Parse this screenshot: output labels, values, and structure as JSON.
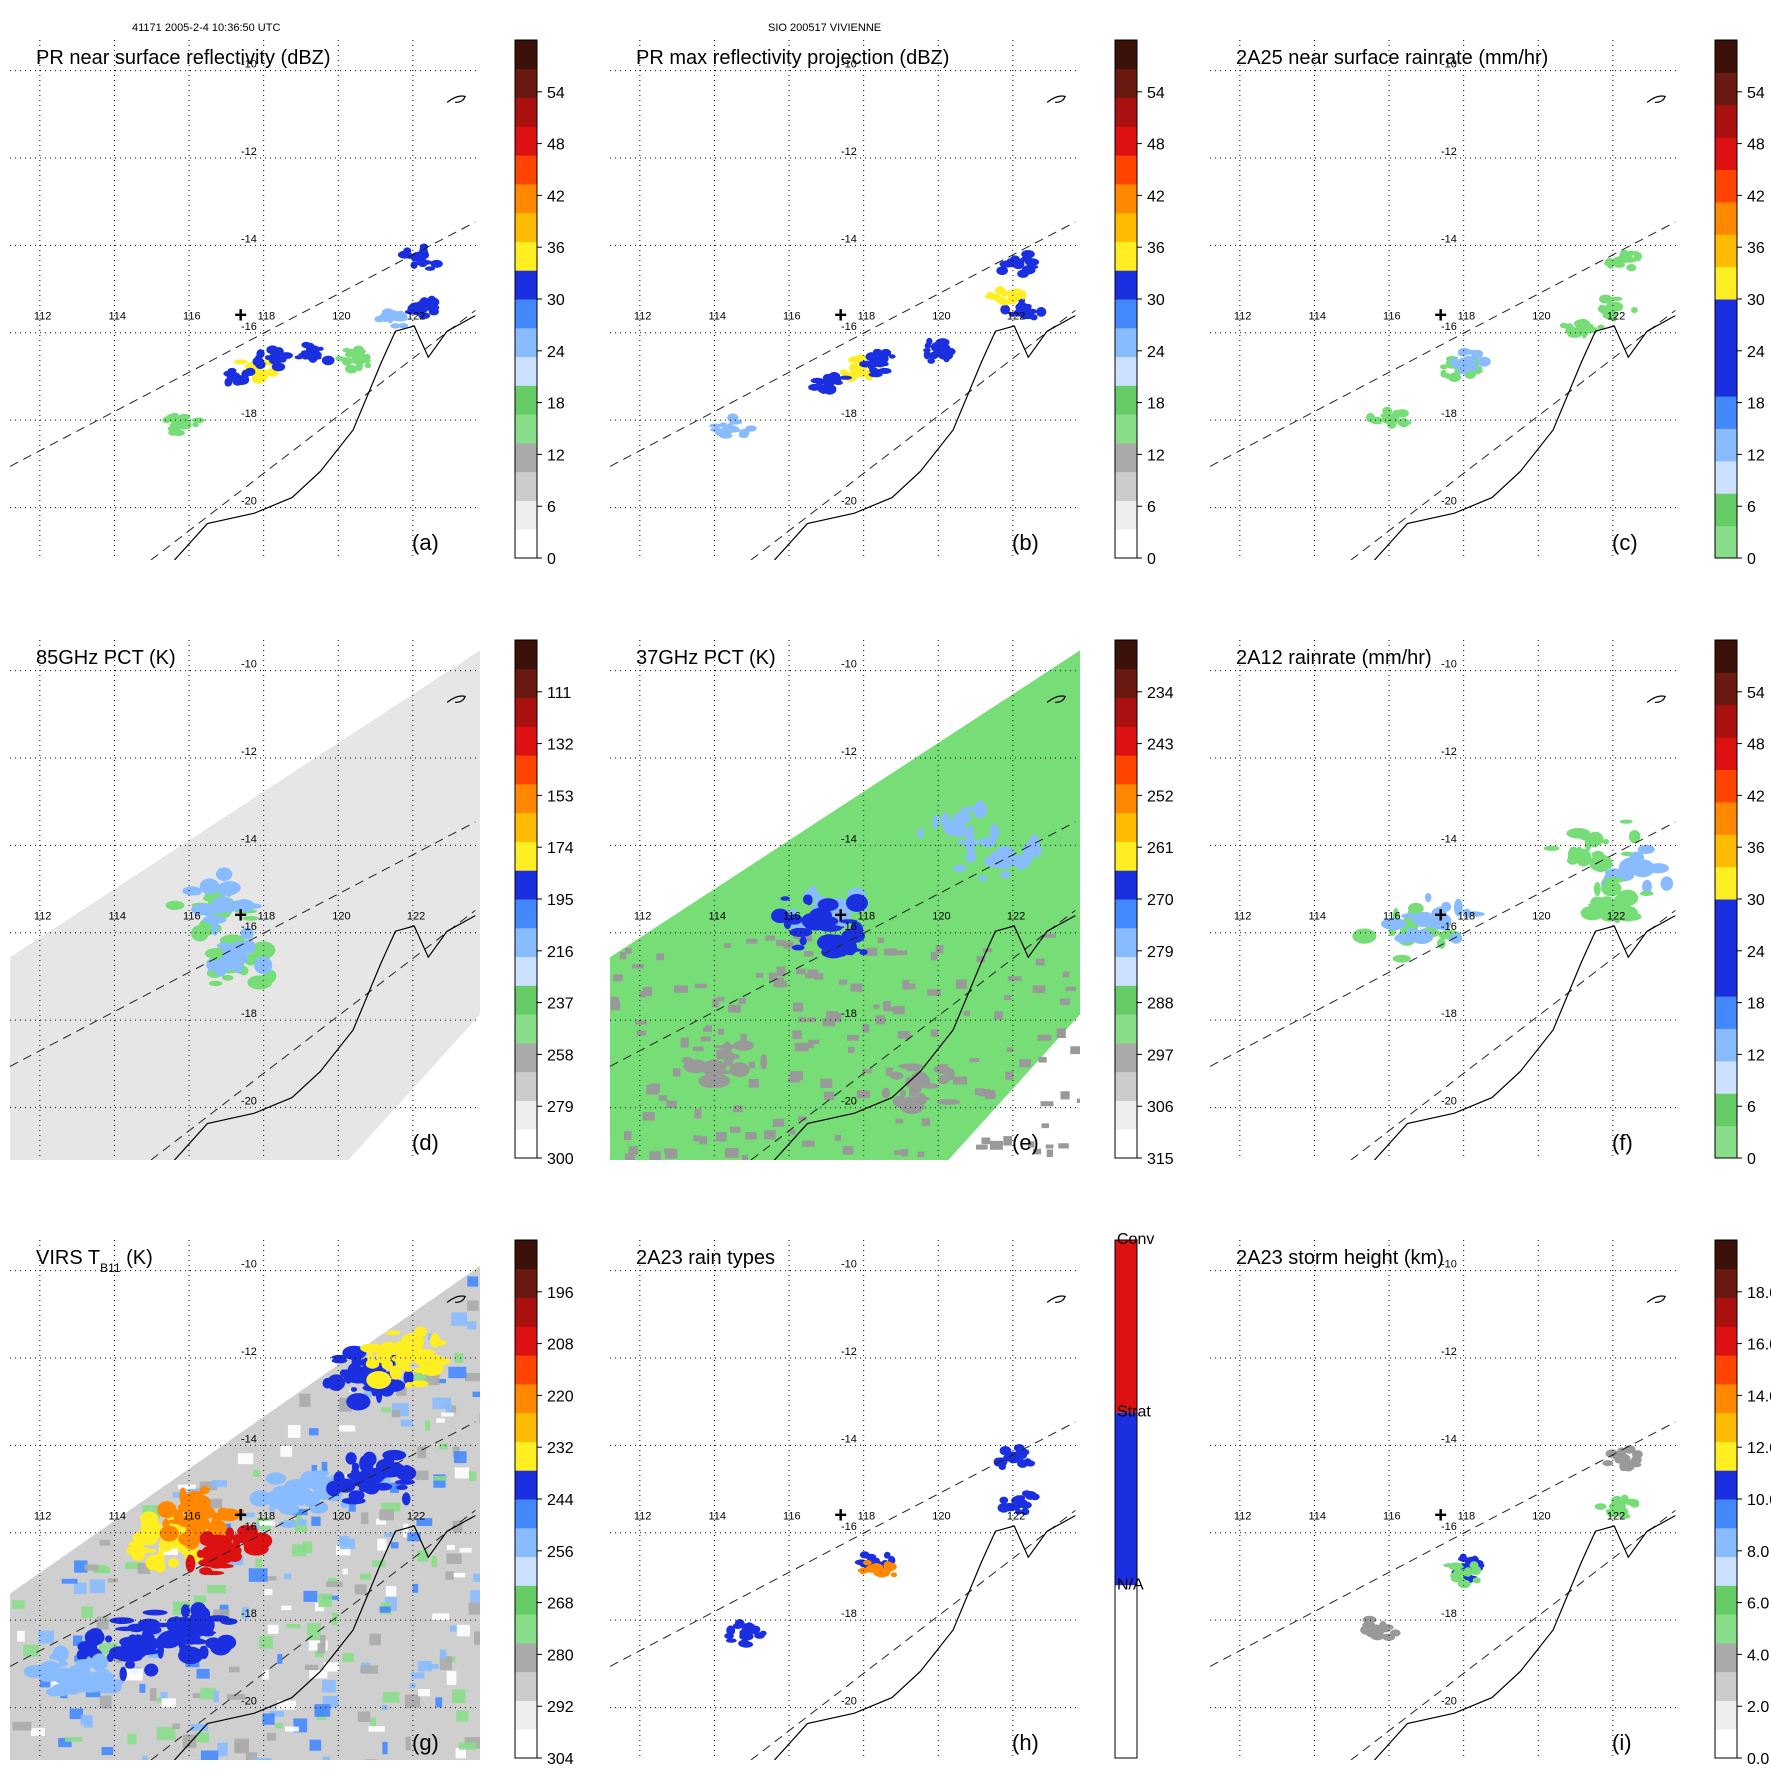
{
  "header": {
    "left": "41171 2005-2-4 10:36:50 UTC",
    "center": "SIO 200517 VIVIENNE"
  },
  "colors": {
    "green": "#77dd77",
    "gray_dark": "#999999",
    "light_blue": "#88bbff",
    "blue": "#1a2fe0",
    "yellow": "#ffee22",
    "orange": "#ff8800",
    "red": "#dd1111",
    "dark_red": "#6a1a10"
  },
  "axes": {
    "lon_ticks": [
      "112",
      "114",
      "116",
      "118",
      "120",
      "122"
    ],
    "lat_ticks": [
      "-10",
      "-12",
      "-14",
      "-16",
      "-18",
      "-20"
    ]
  },
  "chart_data": [
    {
      "type": "heatmap",
      "id": "a",
      "title": "PR near surface reflectivity (dBZ)",
      "panel_label": "(a)",
      "colorbar": {
        "type": "numeric",
        "ticks": [
          "0",
          "6",
          "12",
          "18",
          "24",
          "30",
          "36",
          "42",
          "48",
          "54"
        ],
        "colors": [
          "#ffffff",
          "#eeeeee",
          "#cccccc",
          "#aaaaaa",
          "#88dd88",
          "#66cc66",
          "#cce0ff",
          "#88bbff",
          "#4488ff",
          "#1a2fe0",
          "#ffee22",
          "#ffbb00",
          "#ff8800",
          "#ff4400",
          "#dd1111",
          "#aa1111",
          "#6a1a10",
          "#3a1008"
        ]
      },
      "swath": "pr",
      "blobs": [
        {
          "lon": 117.8,
          "lat": -16.8,
          "level": "yellow"
        },
        {
          "lon": 117.2,
          "lat": -17.0,
          "level": "blue"
        },
        {
          "lon": 118.3,
          "lat": -16.6,
          "level": "blue"
        },
        {
          "lon": 119.3,
          "lat": -16.5,
          "level": "blue"
        },
        {
          "lon": 121.5,
          "lat": -15.6,
          "level": "light_blue"
        },
        {
          "lon": 122.3,
          "lat": -15.4,
          "level": "blue"
        },
        {
          "lon": 122.2,
          "lat": -14.3,
          "level": "blue"
        },
        {
          "lon": 115.8,
          "lat": -18.1,
          "level": "green"
        },
        {
          "lon": 120.5,
          "lat": -16.6,
          "level": "green"
        }
      ]
    },
    {
      "type": "heatmap",
      "id": "b",
      "title": "PR max reflectivity projection (dBZ)",
      "panel_label": "(b)",
      "colorbar": {
        "type": "numeric",
        "ticks": [
          "0",
          "6",
          "12",
          "18",
          "24",
          "30",
          "36",
          "42",
          "48",
          "54"
        ],
        "colors": [
          "#ffffff",
          "#eeeeee",
          "#cccccc",
          "#aaaaaa",
          "#88dd88",
          "#66cc66",
          "#cce0ff",
          "#88bbff",
          "#4488ff",
          "#1a2fe0",
          "#ffee22",
          "#ffbb00",
          "#ff8800",
          "#ff4400",
          "#dd1111",
          "#aa1111",
          "#6a1a10",
          "#3a1008"
        ]
      },
      "swath": "pr",
      "blobs": [
        {
          "lon": 117.8,
          "lat": -16.8,
          "level": "yellow"
        },
        {
          "lon": 117.1,
          "lat": -17.1,
          "level": "blue"
        },
        {
          "lon": 118.4,
          "lat": -16.7,
          "level": "blue"
        },
        {
          "lon": 114.5,
          "lat": -18.2,
          "level": "light_blue"
        },
        {
          "lon": 122.1,
          "lat": -14.4,
          "level": "blue"
        },
        {
          "lon": 122.3,
          "lat": -15.5,
          "level": "blue"
        },
        {
          "lon": 121.8,
          "lat": -15.2,
          "level": "yellow"
        },
        {
          "lon": 120.0,
          "lat": -16.4,
          "level": "blue"
        }
      ]
    },
    {
      "type": "heatmap",
      "id": "c",
      "title": "2A25 near surface rainrate (mm/hr)",
      "panel_label": "(c)",
      "colorbar": {
        "type": "numeric",
        "ticks": [
          "0",
          "6",
          "12",
          "18",
          "24",
          "30",
          "36",
          "42",
          "48",
          "54"
        ],
        "colors": [
          "#88dd88",
          "#66cc66",
          "#cce0ff",
          "#88bbff",
          "#4488ff",
          "#1a2fe0",
          "#1a2fe0",
          "#1a2fe0",
          "#ffee22",
          "#ffbb00",
          "#ff8800",
          "#ff4400",
          "#dd1111",
          "#aa1111",
          "#6a1a10",
          "#3a1008"
        ]
      },
      "swath": "pr",
      "blobs": [
        {
          "lon": 117.9,
          "lat": -16.8,
          "level": "green"
        },
        {
          "lon": 118.1,
          "lat": -16.7,
          "level": "light_blue"
        },
        {
          "lon": 122.1,
          "lat": -15.4,
          "level": "green"
        },
        {
          "lon": 122.3,
          "lat": -14.3,
          "level": "green"
        },
        {
          "lon": 121.2,
          "lat": -15.8,
          "level": "green"
        },
        {
          "lon": 116.0,
          "lat": -18.0,
          "level": "green"
        }
      ]
    },
    {
      "type": "heatmap",
      "id": "d",
      "title": "85GHz PCT (K)",
      "panel_label": "(d)",
      "colorbar": {
        "type": "numeric",
        "ticks": [
          "300",
          "279",
          "258",
          "237",
          "216",
          "195",
          "174",
          "153",
          "132",
          "111"
        ],
        "colors": [
          "#ffffff",
          "#eeeeee",
          "#cccccc",
          "#aaaaaa",
          "#88dd88",
          "#66cc66",
          "#cce0ff",
          "#88bbff",
          "#4488ff",
          "#1a2fe0",
          "#ffee22",
          "#ffbb00",
          "#ff8800",
          "#ff4400",
          "#dd1111",
          "#aa1111",
          "#6a1a10",
          "#3a1008"
        ]
      },
      "swath": "tmi",
      "blobs": [
        {
          "lon": 116.6,
          "lat": -15.4,
          "level": "green"
        },
        {
          "lon": 117.2,
          "lat": -16.7,
          "level": "green"
        },
        {
          "lon": 117.4,
          "lat": -16.6,
          "level": "light_blue"
        },
        {
          "lon": 116.9,
          "lat": -15.3,
          "level": "light_blue"
        }
      ]
    },
    {
      "type": "heatmap",
      "id": "e",
      "title": "37GHz PCT (K)",
      "panel_label": "(e)",
      "colorbar": {
        "type": "numeric",
        "ticks": [
          "315",
          "306",
          "297",
          "288",
          "279",
          "270",
          "261",
          "252",
          "243",
          "234"
        ],
        "colors": [
          "#ffffff",
          "#eeeeee",
          "#cccccc",
          "#aaaaaa",
          "#88dd88",
          "#66cc66",
          "#cce0ff",
          "#88bbff",
          "#4488ff",
          "#1a2fe0",
          "#ffee22",
          "#ffbb00",
          "#ff8800",
          "#ff4400",
          "#dd1111",
          "#aa1111",
          "#6a1a10",
          "#3a1008"
        ]
      },
      "swath": "tmi",
      "background": "green",
      "blobs": [
        {
          "lon": 117.0,
          "lat": -15.5,
          "level": "light_blue"
        },
        {
          "lon": 117.4,
          "lat": -16.2,
          "level": "blue"
        },
        {
          "lon": 116.8,
          "lat": -15.6,
          "level": "blue"
        },
        {
          "lon": 120.6,
          "lat": -13.7,
          "level": "light_blue"
        },
        {
          "lon": 121.6,
          "lat": -14.3,
          "level": "light_blue"
        },
        {
          "lon": 119.5,
          "lat": -19.6,
          "level": "gray_dark"
        },
        {
          "lon": 114.2,
          "lat": -19.1,
          "level": "gray_dark"
        }
      ]
    },
    {
      "type": "heatmap",
      "id": "f",
      "title": "2A12 rainrate (mm/hr)",
      "panel_label": "(f)",
      "colorbar": {
        "type": "numeric",
        "ticks": [
          "0",
          "6",
          "12",
          "18",
          "24",
          "30",
          "36",
          "42",
          "48",
          "54"
        ],
        "colors": [
          "#88dd88",
          "#66cc66",
          "#cce0ff",
          "#88bbff",
          "#4488ff",
          "#1a2fe0",
          "#1a2fe0",
          "#1a2fe0",
          "#ffee22",
          "#ffbb00",
          "#ff8800",
          "#ff4400",
          "#dd1111",
          "#aa1111",
          "#6a1a10",
          "#3a1008"
        ]
      },
      "swath": "pr",
      "blobs": [
        {
          "lon": 116.5,
          "lat": -16.0,
          "level": "green"
        },
        {
          "lon": 117.2,
          "lat": -15.8,
          "level": "light_blue"
        },
        {
          "lon": 121.5,
          "lat": -13.9,
          "level": "green"
        },
        {
          "lon": 122.4,
          "lat": -14.6,
          "level": "light_blue"
        },
        {
          "lon": 122.0,
          "lat": -15.4,
          "level": "green"
        }
      ]
    },
    {
      "type": "heatmap",
      "id": "g",
      "title": "VIRS T",
      "title_sub": "B11",
      "title_unit": " (K)",
      "panel_label": "(g)",
      "colorbar": {
        "type": "numeric",
        "ticks": [
          "304",
          "292",
          "280",
          "268",
          "256",
          "244",
          "232",
          "220",
          "208",
          "196"
        ],
        "colors": [
          "#ffffff",
          "#eeeeee",
          "#cccccc",
          "#aaaaaa",
          "#88dd88",
          "#66cc66",
          "#cce0ff",
          "#88bbff",
          "#4488ff",
          "#1a2fe0",
          "#ffee22",
          "#ffbb00",
          "#ff8800",
          "#ff4400",
          "#dd1111",
          "#aa1111",
          "#6a1a10",
          "#3a1008"
        ]
      },
      "swath": "virs",
      "background": "gray_light",
      "blobs": [
        {
          "lon": 115.6,
          "lat": -16.2,
          "level": "yellow"
        },
        {
          "lon": 116.2,
          "lat": -15.6,
          "level": "orange"
        },
        {
          "lon": 117.0,
          "lat": -16.4,
          "level": "red"
        },
        {
          "lon": 114.4,
          "lat": -18.6,
          "level": "blue"
        },
        {
          "lon": 116.0,
          "lat": -18.2,
          "level": "blue"
        },
        {
          "lon": 120.8,
          "lat": -12.4,
          "level": "blue"
        },
        {
          "lon": 121.8,
          "lat": -12.0,
          "level": "yellow"
        },
        {
          "lon": 113.0,
          "lat": -19.2,
          "level": "light_blue"
        },
        {
          "lon": 119.0,
          "lat": -15.2,
          "level": "light_blue"
        },
        {
          "lon": 121.0,
          "lat": -14.8,
          "level": "blue"
        }
      ]
    },
    {
      "type": "heatmap",
      "id": "h",
      "title": "2A23 rain types",
      "panel_label": "(h)",
      "colorbar": {
        "type": "categorical",
        "ticks": [
          "N/A",
          "Strat",
          "Conv"
        ],
        "colors": [
          "#ffffff",
          "#1a2fe0",
          "#ff4400"
        ]
      },
      "swath": "pr",
      "blobs": [
        {
          "lon": 118.3,
          "lat": -16.7,
          "level": "blue"
        },
        {
          "lon": 118.4,
          "lat": -16.8,
          "level": "orange"
        },
        {
          "lon": 114.8,
          "lat": -18.3,
          "level": "blue"
        },
        {
          "lon": 122.0,
          "lat": -14.3,
          "level": "blue"
        },
        {
          "lon": 122.2,
          "lat": -15.3,
          "level": "blue"
        }
      ]
    },
    {
      "type": "heatmap",
      "id": "i",
      "title": "2A23 storm height (km)",
      "panel_label": "(i)",
      "colorbar": {
        "type": "numeric",
        "ticks": [
          "0.0",
          "2.0",
          "4.0",
          "6.0",
          "8.0",
          "10.0",
          "12.0",
          "14.0",
          "16.0",
          "18.0"
        ],
        "colors": [
          "#ffffff",
          "#eeeeee",
          "#cccccc",
          "#aaaaaa",
          "#88dd88",
          "#66cc66",
          "#cce0ff",
          "#88bbff",
          "#4488ff",
          "#1a2fe0",
          "#ffee22",
          "#ffbb00",
          "#ff8800",
          "#ff4400",
          "#dd1111",
          "#aa1111",
          "#6a1a10",
          "#3a1008"
        ]
      },
      "swath": "pr",
      "blobs": [
        {
          "lon": 118.2,
          "lat": -16.8,
          "level": "blue"
        },
        {
          "lon": 118.0,
          "lat": -16.9,
          "level": "green"
        },
        {
          "lon": 115.8,
          "lat": -18.2,
          "level": "gray_dark"
        },
        {
          "lon": 122.1,
          "lat": -15.4,
          "level": "green"
        },
        {
          "lon": 122.3,
          "lat": -14.3,
          "level": "gray_dark"
        }
      ]
    }
  ]
}
